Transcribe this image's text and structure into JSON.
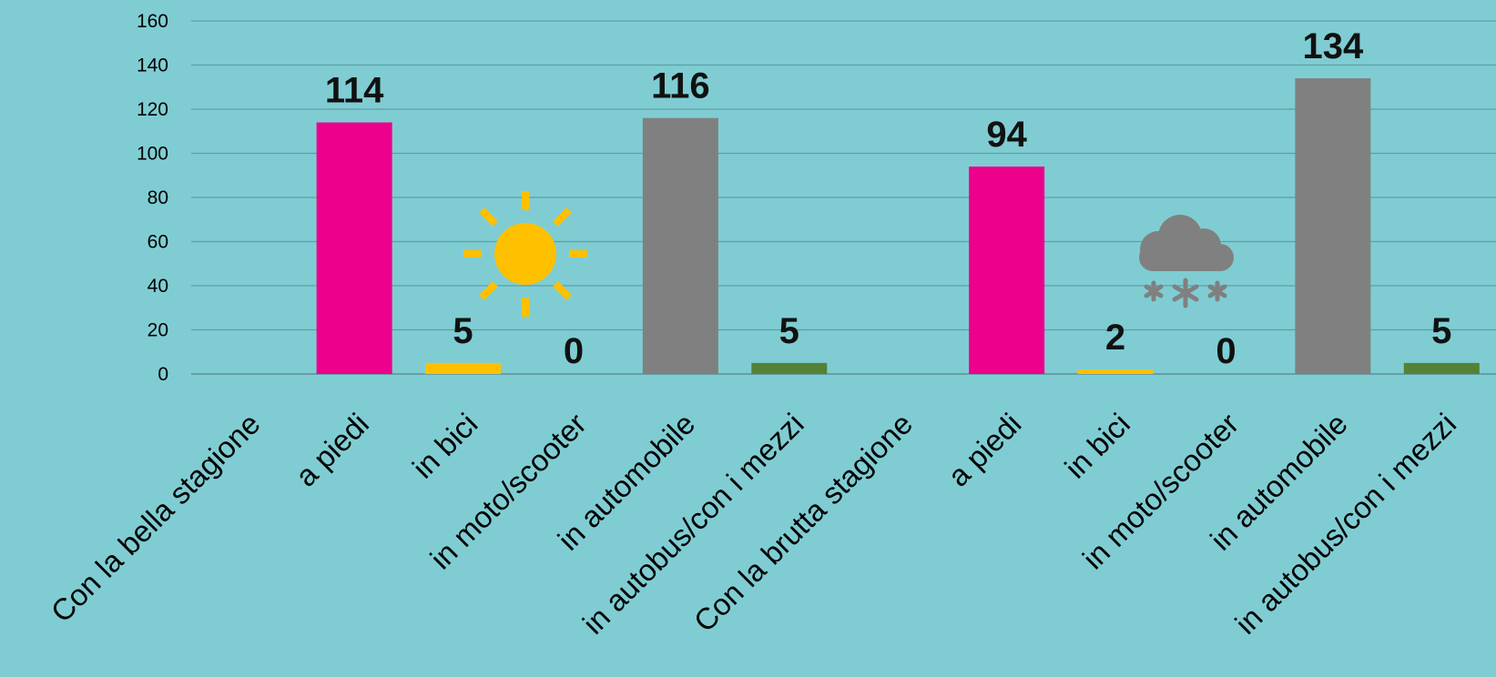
{
  "chart_data": {
    "type": "bar",
    "categories": [
      "Con la bella stagione",
      "a piedi",
      "in bici",
      "in moto/scooter",
      "in automobile",
      "in autobus/con i mezzi",
      "Con la brutta stagione",
      "a piedi",
      "in bici",
      "in moto/scooter",
      "in automobile",
      "in autobus/con i mezzi"
    ],
    "values": [
      null,
      114,
      5,
      0,
      116,
      5,
      null,
      94,
      2,
      0,
      134,
      5
    ],
    "data_labels": [
      "",
      "114",
      "5",
      "0",
      "116",
      "5",
      "",
      "94",
      "2",
      "0",
      "134",
      "5"
    ],
    "bar_colors": [
      "",
      "#EC008C",
      "#FFC000",
      "#FFC000",
      "#808080",
      "#548235",
      "",
      "#EC008C",
      "#FFC000",
      "#FFC000",
      "#808080",
      "#548235"
    ],
    "ylim": [
      0,
      160
    ],
    "yticks": [
      0,
      20,
      40,
      60,
      80,
      100,
      120,
      140,
      160
    ],
    "grid": true,
    "legend": "none",
    "title": "",
    "xlabel": "",
    "ylabel": "",
    "icons": [
      {
        "name": "sun-icon",
        "color": "#FFC000"
      },
      {
        "name": "snow-cloud-icon",
        "color": "#808080"
      }
    ]
  },
  "colors": {
    "background": "#7FCDD3",
    "gridline": "#5E9FA5"
  }
}
